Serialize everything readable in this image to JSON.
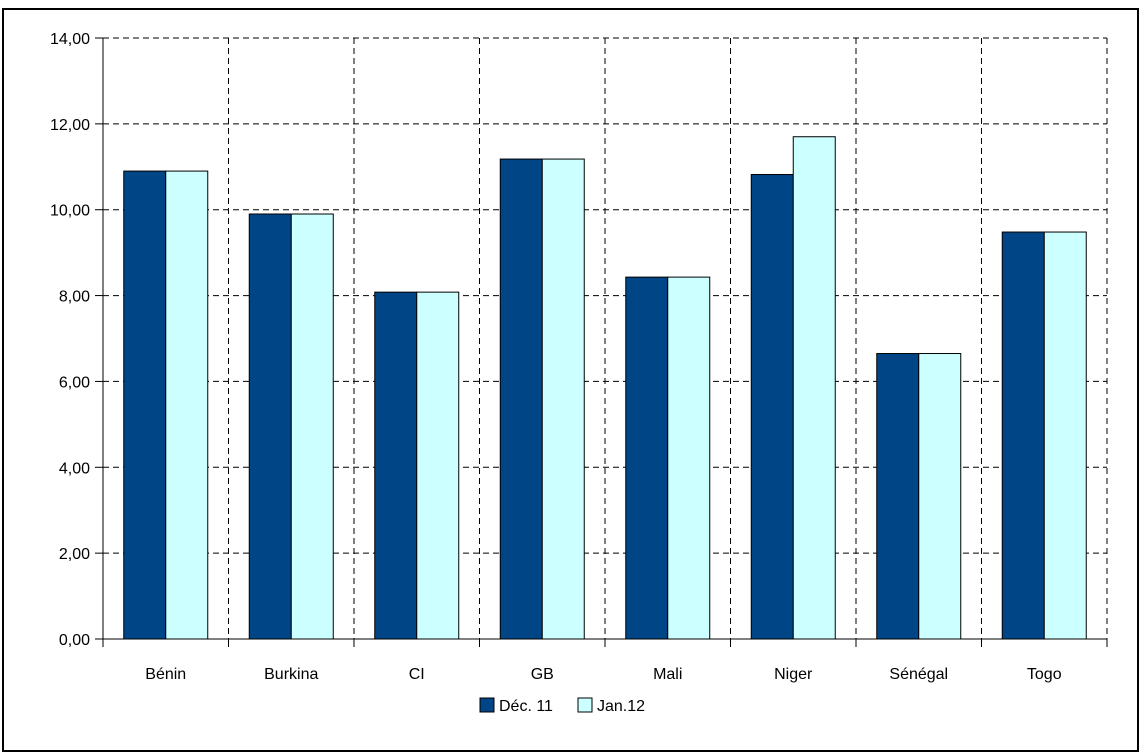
{
  "chart_data": {
    "type": "bar",
    "title": "",
    "xlabel": "",
    "ylabel": "",
    "categories": [
      "Bénin",
      "Burkina",
      "CI",
      "GB",
      "Mali",
      "Niger",
      "Sénégal",
      "Togo"
    ],
    "series": [
      {
        "name": "Déc. 11",
        "color": "#004586",
        "values": [
          10.9,
          9.9,
          8.08,
          11.18,
          8.43,
          10.82,
          6.65,
          9.48
        ]
      },
      {
        "name": "Jan.12",
        "color": "#ccffff",
        "values": [
          10.9,
          9.9,
          8.08,
          11.18,
          8.43,
          11.7,
          6.65,
          9.48
        ]
      }
    ],
    "ylim": [
      0,
      14
    ],
    "yticks": [
      0,
      2,
      4,
      6,
      8,
      10,
      12,
      14
    ],
    "ytick_labels": [
      "0,00",
      "2,00",
      "4,00",
      "6,00",
      "8,00",
      "10,00",
      "12,00",
      "14,00"
    ],
    "grid": true,
    "grid_style": "dashed",
    "legend_position": "bottom-center"
  }
}
